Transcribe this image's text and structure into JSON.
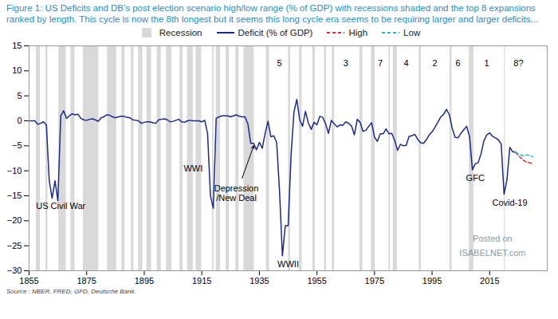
{
  "chart_data": {
    "type": "line",
    "title": "Figure 1: US Deficits and DB's post election scenario high/low range (% of GDP) with recessions shaded and the top 8 expansions ranked by length. This cycle is now the 8th longest but it seems this long cycle era seems to be requiring larger and larger deficits...",
    "caption": "Source : NBER, FRED, GFD, Deutsche Bank.",
    "xlim": [
      1855,
      2035
    ],
    "xticks": [
      1855,
      1875,
      1895,
      1915,
      1935,
      1955,
      1975,
      1995,
      2015
    ],
    "ylim": [
      -30,
      15
    ],
    "yticks": [
      -30,
      -25,
      -20,
      -15,
      -10,
      -5,
      0,
      5,
      10,
      15
    ],
    "grid": false,
    "legend": "top",
    "recessions": {
      "name": "Recession",
      "color": "#d9d9d9",
      "periods": [
        [
          1857.5,
          1858.9
        ],
        [
          1860.8,
          1861.5
        ],
        [
          1865.3,
          1867.9
        ],
        [
          1869.5,
          1870.9
        ],
        [
          1873.8,
          1879.2
        ],
        [
          1882.2,
          1885.4
        ],
        [
          1887.2,
          1888.3
        ],
        [
          1890.5,
          1891.4
        ],
        [
          1893.0,
          1894.5
        ],
        [
          1895.9,
          1897.5
        ],
        [
          1899.5,
          1900.9
        ],
        [
          1902.7,
          1904.6
        ],
        [
          1907.4,
          1908.5
        ],
        [
          1910.0,
          1912.0
        ],
        [
          1913.0,
          1914.9
        ],
        [
          1918.7,
          1919.2
        ],
        [
          1920.0,
          1921.5
        ],
        [
          1923.4,
          1924.5
        ],
        [
          1926.8,
          1927.9
        ],
        [
          1929.6,
          1933.2
        ],
        [
          1937.4,
          1938.5
        ],
        [
          1945.1,
          1945.8
        ],
        [
          1948.9,
          1949.8
        ],
        [
          1953.5,
          1954.4
        ],
        [
          1957.6,
          1958.3
        ],
        [
          1960.3,
          1961.1
        ],
        [
          1969.9,
          1970.9
        ],
        [
          1973.9,
          1975.2
        ],
        [
          1980.0,
          1980.5
        ],
        [
          1981.5,
          1982.9
        ],
        [
          1990.5,
          1991.2
        ],
        [
          2001.2,
          2001.9
        ],
        [
          2007.9,
          2009.5
        ],
        [
          2020.1,
          2020.4
        ]
      ]
    },
    "series": [
      {
        "name": "Deficit (% of GDP)",
        "color": "#1a2a8c",
        "line_style": "solid",
        "x": [
          1855,
          1856,
          1857,
          1858,
          1859,
          1860,
          1861,
          1862,
          1863,
          1864,
          1865,
          1866,
          1867,
          1868,
          1869,
          1870,
          1871,
          1872,
          1873,
          1874,
          1875,
          1876,
          1877,
          1878,
          1879,
          1880,
          1881,
          1882,
          1883,
          1884,
          1885,
          1886,
          1887,
          1888,
          1889,
          1890,
          1891,
          1892,
          1893,
          1894,
          1895,
          1896,
          1897,
          1898,
          1899,
          1900,
          1901,
          1902,
          1903,
          1904,
          1905,
          1906,
          1907,
          1908,
          1909,
          1910,
          1911,
          1912,
          1913,
          1914,
          1915,
          1916,
          1917,
          1918,
          1919,
          1920,
          1921,
          1922,
          1923,
          1924,
          1925,
          1926,
          1927,
          1928,
          1929,
          1930,
          1931,
          1932,
          1933,
          1934,
          1935,
          1936,
          1937,
          1938,
          1939,
          1940,
          1941,
          1942,
          1943,
          1944,
          1945,
          1946,
          1947,
          1948,
          1949,
          1950,
          1951,
          1952,
          1953,
          1954,
          1955,
          1956,
          1957,
          1958,
          1959,
          1960,
          1961,
          1962,
          1963,
          1964,
          1965,
          1966,
          1967,
          1968,
          1969,
          1970,
          1971,
          1972,
          1973,
          1974,
          1975,
          1976,
          1977,
          1978,
          1979,
          1980,
          1981,
          1982,
          1983,
          1984,
          1985,
          1986,
          1987,
          1988,
          1989,
          1990,
          1991,
          1992,
          1993,
          1994,
          1995,
          1996,
          1997,
          1998,
          1999,
          2000,
          2001,
          2002,
          2003,
          2004,
          2005,
          2006,
          2007,
          2008,
          2009,
          2010,
          2011,
          2012,
          2013,
          2014,
          2015,
          2016,
          2017,
          2018,
          2019,
          2020,
          2021,
          2022,
          2023,
          2024
        ],
        "values": [
          0,
          0,
          0,
          -0.7,
          -0.5,
          -0.2,
          -0.8,
          -12,
          -15.5,
          -12,
          -16,
          1,
          2,
          0.5,
          1,
          1.4,
          1.2,
          1.3,
          0.5,
          0.2,
          0.1,
          0.3,
          0.4,
          0.2,
          -0.1,
          0.6,
          0.8,
          1.2,
          1.1,
          0.8,
          0.6,
          0.8,
          0.9,
          0.9,
          0.7,
          0.6,
          0.2,
          0.1,
          0,
          -0.5,
          -0.3,
          -0.2,
          -0.2,
          -0.4,
          -0.5,
          0.2,
          0.3,
          0.4,
          0.2,
          -0.2,
          -0.1,
          0.1,
          0.3,
          -0.2,
          -0.3,
          0,
          0.1,
          0,
          0,
          0,
          -0.2,
          0.1,
          -2.5,
          -15,
          -17.5,
          0.5,
          0.8,
          1,
          1,
          1,
          0.8,
          1,
          1.2,
          0.9,
          0.8,
          0.8,
          -0.6,
          -4.5,
          -4.5,
          -5.8,
          -4.3,
          -5.5,
          -2.5,
          -0.1,
          -3.2,
          -3,
          -4.3,
          -14,
          -27,
          -21,
          -21,
          -7,
          1.7,
          4.3,
          0.2,
          -1.1,
          1.9,
          -0.4,
          -1.7,
          -0.3,
          -0.8,
          0.9,
          0.7,
          -0.6,
          -2.5,
          0.1,
          -0.6,
          -1.2,
          -0.8,
          -0.9,
          -0.2,
          -0.5,
          -1,
          -2.8,
          0.3,
          -0.3,
          -2.1,
          -1.9,
          -1.1,
          -0.4,
          -3.3,
          -4.1,
          -2.6,
          -2.6,
          -1.6,
          -2.6,
          -2.5,
          -3.9,
          -5.9,
          -4.7,
          -5,
          -4.9,
          -3.1,
          -3,
          -2.7,
          -3.7,
          -4.4,
          -4.5,
          -3.8,
          -2.8,
          -2.2,
          -1.3,
          -0.3,
          0.8,
          1.3,
          2.3,
          1.2,
          -1.5,
          -3.3,
          -3.4,
          -2.5,
          -1.8,
          -1.1,
          -3.1,
          -9.8,
          -8.6,
          -8.4,
          -6.6,
          -4,
          -2.8,
          -2.4,
          -3.1,
          -3.4,
          -3.8,
          -4.6,
          -14.7,
          -11.8,
          -5.3,
          -6.2,
          -6.3
        ]
      },
      {
        "name": "High",
        "color": "#e8262b",
        "line_style": "dashed",
        "x": [
          2024,
          2025,
          2026,
          2027,
          2028,
          2029,
          2030
        ],
        "values": [
          -6.3,
          -7.0,
          -7.5,
          -8.0,
          -8.3,
          -8.4,
          -8.6
        ]
      },
      {
        "name": "Low",
        "color": "#2bb3d9",
        "line_style": "dashed",
        "x": [
          2024,
          2025,
          2026,
          2027,
          2028,
          2029,
          2030
        ],
        "values": [
          -6.3,
          -6.6,
          -6.9,
          -7.0,
          -6.8,
          -7.0,
          -7.2
        ]
      }
    ],
    "annotations": [
      {
        "x": 1866,
        "y": -17,
        "text": "US Civil War",
        "color": "#000000"
      },
      {
        "x": 1912,
        "y": -9.5,
        "text": "WWI",
        "color": "#000000"
      },
      {
        "x": 1927,
        "y": -14.5,
        "text": "Depression\n/New Deal",
        "color": "#000000"
      },
      {
        "x": 1945,
        "y": -28.6,
        "text": "WWII",
        "color": "#000000"
      },
      {
        "x": 2010,
        "y": -11.5,
        "text": "GFC",
        "color": "#000000"
      },
      {
        "x": 2022,
        "y": -16.3,
        "text": "Covid-19",
        "color": "#000000"
      },
      {
        "x": 1942,
        "y": 11.5,
        "text": "5",
        "color": "#000000"
      },
      {
        "x": 1965,
        "y": 11.5,
        "text": "3",
        "color": "#000000"
      },
      {
        "x": 1977,
        "y": 11.5,
        "text": "7",
        "color": "#000000"
      },
      {
        "x": 1986,
        "y": 11.5,
        "text": "4",
        "color": "#000000"
      },
      {
        "x": 1996,
        "y": 11.5,
        "text": "2",
        "color": "#000000"
      },
      {
        "x": 2004,
        "y": 11.5,
        "text": "6",
        "color": "#000000"
      },
      {
        "x": 2014,
        "y": 11.5,
        "text": "1",
        "color": "#000000"
      },
      {
        "x": 2025,
        "y": 11.5,
        "text": "8?",
        "color": "#000000"
      },
      {
        "x": 2016,
        "y": -23.5,
        "text": "Posted on",
        "color": "#8a9aa5"
      },
      {
        "x": 2016,
        "y": -26.5,
        "text": "ISABELNET.com",
        "color": "#8a9aa5"
      }
    ],
    "arrows": [
      {
        "x1": 1929,
        "y1": -11.5,
        "x2": 1933,
        "y2": -5
      }
    ]
  }
}
